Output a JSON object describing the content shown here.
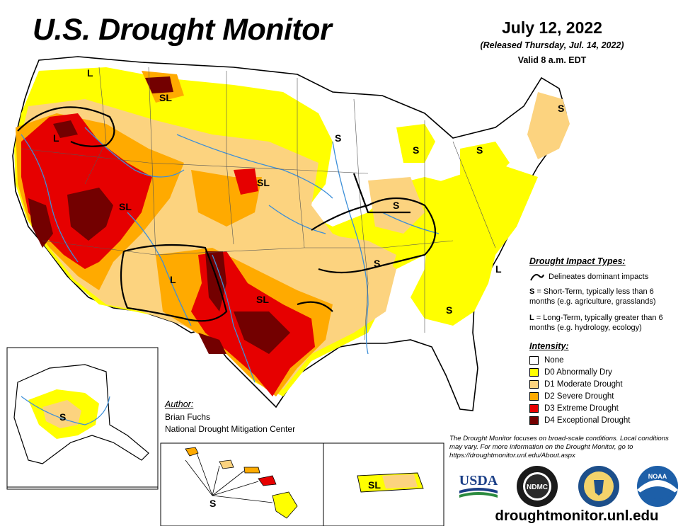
{
  "header": {
    "title": "U.S. Drought Monitor",
    "date": "July 12, 2022",
    "released": "(Released Thursday, Jul. 14, 2022)",
    "valid": "Valid 8 a.m. EDT"
  },
  "impact_legend": {
    "title": "Drought Impact Types:",
    "line_text": "Delineates dominant impacts",
    "short_term_key": "S",
    "short_term_text": "= Short-Term, typically less than 6 months (e.g. agriculture, grasslands)",
    "long_term_key": "L",
    "long_term_text": "= Long-Term, typically greater than 6 months (e.g. hydrology, ecology)"
  },
  "intensity_legend": {
    "title": "Intensity:",
    "items": [
      {
        "label": "None",
        "color": "#ffffff"
      },
      {
        "label": "D0 Abnormally Dry",
        "color": "#ffff00"
      },
      {
        "label": "D1 Moderate Drought",
        "color": "#fcd37f"
      },
      {
        "label": "D2 Severe Drought",
        "color": "#ffaa00"
      },
      {
        "label": "D3 Extreme Drought",
        "color": "#e60000"
      },
      {
        "label": "D4 Exceptional Drought",
        "color": "#730000"
      }
    ]
  },
  "author": {
    "title": "Author:",
    "name": "Brian Fuchs",
    "org": "National Drought Mitigation Center"
  },
  "note": "The Drought Monitor focuses on broad-scale conditions. Local conditions may vary. For more information on the Drought Monitor, go to https://droughtmonitor.unl.edu/About.aspx",
  "url": "droughtmonitor.unl.edu",
  "map_labels": {
    "l": "L",
    "s": "S",
    "sl": "SL"
  },
  "logos": {
    "usda": "USDA",
    "ndmc": "NDMC",
    "noaa": "NOAA"
  },
  "colors": {
    "none": "#ffffff",
    "d0": "#ffff00",
    "d1": "#fcd37f",
    "d2": "#ffaa00",
    "d3": "#e60000",
    "d4": "#730000",
    "river": "#3d8fd8",
    "usda_blue": "#1b3f87",
    "usda_green": "#2b8a3e",
    "noaa_blue": "#1d5fa8"
  }
}
